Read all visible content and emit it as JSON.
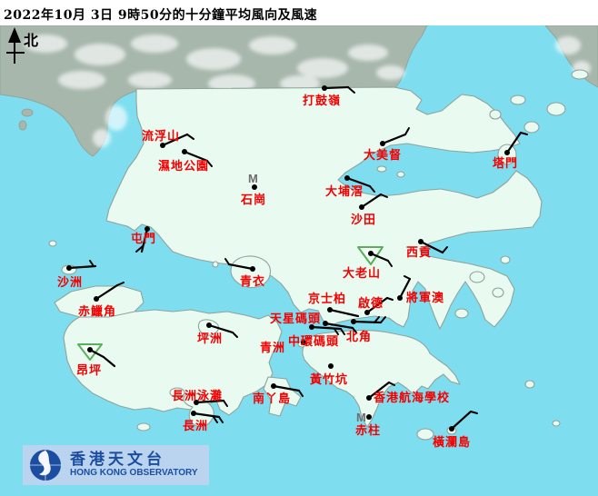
{
  "title": "2022年10月 3日 9時50分的十分鐘平均風向及風速",
  "north_label": "北",
  "calm_symbol": "M",
  "logo": {
    "chinese": "香港天文台",
    "english": "HONG KONG OBSERVATORY"
  },
  "colors": {
    "sea": "#7EDEF0",
    "land": "#E9FAF1",
    "shenzhen_land": "#A7B7AC",
    "station_label": "#f40000",
    "barb": "#000000",
    "calm_marker": "#6e6e6e",
    "mountain_triangle": "#58B058",
    "banner_bg": "#BAD4F0",
    "logo_blue": "#1b4ea0",
    "title_text": "#000000"
  },
  "stations": [
    {
      "name": "打鼓嶺",
      "marker": "dot",
      "dot": [
        357,
        97
      ],
      "barb": [
        [
          357,
          97
        ],
        [
          383,
          96
        ]
      ],
      "ticks": [
        [
          383,
          96,
          390,
          102
        ]
      ],
      "label": [
        333,
        104
      ]
    },
    {
      "name": "流浮山",
      "marker": "dot",
      "dot": [
        179,
        160
      ],
      "barb": [
        [
          179,
          160
        ],
        [
          206,
          148
        ]
      ],
      "ticks": [
        [
          206,
          148,
          213,
          153
        ]
      ],
      "label": [
        156,
        143
      ]
    },
    {
      "name": "濕地公園",
      "marker": "dot",
      "dot": [
        203,
        167
      ],
      "barb": [
        [
          203,
          167
        ],
        [
          228,
          177
        ]
      ],
      "ticks": [
        [
          228,
          177,
          233,
          183
        ]
      ],
      "label": [
        174,
        176
      ]
    },
    {
      "name": "石崗",
      "marker": "calm",
      "dot": [
        280,
        206
      ],
      "m": [
        273,
        201
      ],
      "label": [
        265,
        213
      ]
    },
    {
      "name": "大埔滘",
      "marker": "dot",
      "dot": [
        382,
        196
      ],
      "barb": [
        [
          382,
          196
        ],
        [
          407,
          205
        ]
      ],
      "ticks": [
        [
          407,
          205,
          412,
          211
        ]
      ],
      "label": [
        358,
        204
      ]
    },
    {
      "name": "沙田",
      "marker": "dot",
      "dot": [
        398,
        228
      ],
      "barb": [
        [
          398,
          228
        ],
        [
          419,
          214
        ]
      ],
      "ticks": [
        [
          419,
          214,
          426,
          217
        ]
      ],
      "label": [
        386,
        235
      ]
    },
    {
      "name": "大美督",
      "marker": "dot",
      "dot": [
        421,
        158
      ],
      "barb": [
        [
          421,
          158
        ],
        [
          446,
          148
        ]
      ],
      "ticks": [
        [
          446,
          148,
          450,
          141
        ]
      ],
      "label": [
        400,
        164
      ]
    },
    {
      "name": "塔門",
      "marker": "dot",
      "dot": [
        558,
        168
      ],
      "barb": [
        [
          558,
          168
        ],
        [
          573,
          146
        ]
      ],
      "ticks": [
        [
          573,
          146,
          580,
          148
        ]
      ],
      "label": [
        542,
        173
      ]
    },
    {
      "name": "屯門",
      "marker": "dot",
      "dot": [
        162,
        252
      ],
      "barb": [
        [
          162,
          252
        ],
        [
          156,
          277
        ]
      ],
      "ticks": [
        [
          157,
          271,
          150,
          277
        ]
      ],
      "label": [
        144,
        256
      ]
    },
    {
      "name": "青衣",
      "marker": "dot",
      "dot": [
        278,
        296
      ],
      "barb": [
        [
          278,
          296
        ],
        [
          252,
          291
        ]
      ],
      "ticks": [
        [
          252,
          291,
          248,
          285
        ]
      ],
      "label": [
        264,
        303
      ]
    },
    {
      "name": "赤鱲角",
      "marker": "dot",
      "dot": [
        106,
        329
      ],
      "barb": [
        [
          106,
          329
        ],
        [
          129,
          314
        ]
      ],
      "ticks": [
        [
          129,
          314,
          136,
          311
        ]
      ],
      "label": [
        86,
        336
      ]
    },
    {
      "name": "沙洲",
      "marker": "dot",
      "dot": [
        76,
        295
      ],
      "barb": [
        [
          76,
          295
        ],
        [
          105,
          293
        ]
      ],
      "ticks": [
        [
          103,
          293,
          99,
          287
        ]
      ],
      "label": [
        63,
        304
      ]
    },
    {
      "name": "坪洲",
      "marker": "dot",
      "dot": [
        230,
        358
      ],
      "barb": [
        [
          230,
          358
        ],
        [
          256,
          366
        ]
      ],
      "ticks": [
        [
          256,
          366,
          261,
          371
        ]
      ],
      "label": [
        217,
        366
      ]
    },
    {
      "name": "大老山",
      "marker": "triangle",
      "tri": [
        [
          394,
          272
        ],
        [
          421,
          272
        ],
        [
          408,
          291
        ]
      ],
      "dot": [
        408,
        279
      ],
      "barb": [
        [
          408,
          279
        ],
        [
          427,
          287
        ]
      ],
      "ticks": [
        [
          427,
          287,
          431,
          293
        ]
      ],
      "label": [
        377,
        294
      ]
    },
    {
      "name": "西貢",
      "marker": "dot",
      "dot": [
        463,
        266
      ],
      "barb": [
        [
          463,
          266
        ],
        [
          487,
          278
        ]
      ],
      "ticks": [
        [
          487,
          278,
          492,
          272
        ]
      ],
      "label": [
        447,
        271
      ]
    },
    {
      "name": "將軍澳",
      "marker": "dot",
      "dot": [
        440,
        328
      ],
      "barb": [
        [
          440,
          328
        ],
        [
          451,
          307
        ]
      ],
      "ticks": [
        [
          451,
          307,
          445,
          304
        ]
      ],
      "label": [
        447,
        321
      ]
    },
    {
      "name": "京士柏",
      "marker": "dot",
      "dot": [
        363,
        341
      ],
      "barb": [
        [
          363,
          341
        ],
        [
          394,
          348
        ]
      ],
      "ticks": [],
      "label": [
        339,
        322
      ]
    },
    {
      "name": "啟德",
      "marker": "dot",
      "dot": [
        404,
        344
      ],
      "barb": [
        [
          404,
          344
        ],
        [
          426,
          328
        ]
      ],
      "ticks": [
        [
          426,
          328,
          432,
          330
        ]
      ],
      "label": [
        394,
        327
      ]
    },
    {
      "name": "天星碼頭",
      "marker": "dot",
      "dot": [
        358,
        356
      ],
      "barb": [
        [
          358,
          356
        ],
        [
          388,
          361
        ]
      ],
      "ticks": [
        [
          388,
          361,
          392,
          366
        ]
      ],
      "label": [
        297,
        344
      ]
    },
    {
      "name": "中環碼頭",
      "marker": "dot",
      "dot": [
        343,
        360
      ],
      "barb": [
        [
          343,
          360
        ],
        [
          375,
          362
        ]
      ],
      "ticks": [
        [
          368,
          362,
          372,
          368
        ],
        [
          375,
          362,
          379,
          368
        ]
      ],
      "label": [
        317,
        369
      ]
    },
    {
      "name": "北角",
      "marker": "dot",
      "dot": [
        389,
        354
      ],
      "barb": [
        [
          389,
          354
        ],
        [
          419,
          355
        ]
      ],
      "ticks": [
        [
          412,
          355,
          417,
          349
        ],
        [
          419,
          355,
          424,
          349
        ]
      ],
      "label": [
        381,
        364
      ]
    },
    {
      "name": "青洲",
      "marker": "dot",
      "dot": [
        334,
        377
      ],
      "label": [
        286,
        376
      ]
    },
    {
      "name": "黃竹坑",
      "marker": "dot",
      "dot": [
        364,
        403
      ],
      "label": [
        341,
        411
      ]
    },
    {
      "name": "南丫島",
      "marker": "dot",
      "dot": [
        301,
        425
      ],
      "barb": [
        [
          301,
          425
        ],
        [
          329,
          430
        ]
      ],
      "ticks": [
        [
          329,
          430,
          333,
          436
        ]
      ],
      "label": [
        278,
        432
      ]
    },
    {
      "name": "香港航海學校",
      "marker": "dot",
      "dot": [
        406,
        438
      ],
      "barb": [
        [
          406,
          438
        ],
        [
          428,
          421
        ]
      ],
      "ticks": [
        [
          428,
          421,
          434,
          424
        ]
      ],
      "label": [
        411,
        431
      ]
    },
    {
      "name": "赤柱",
      "marker": "calm",
      "dot": [
        406,
        459
      ],
      "m": [
        392,
        464
      ],
      "label": [
        391,
        467
      ]
    },
    {
      "name": "橫瀾島",
      "marker": "dot",
      "dot": [
        497,
        472
      ],
      "barb": [
        [
          497,
          472
        ],
        [
          518,
          453
        ]
      ],
      "ticks": [
        [
          518,
          453,
          525,
          455
        ]
      ],
      "label": [
        476,
        480
      ]
    },
    {
      "name": "昂坪",
      "marker": "triangle",
      "tri": [
        [
          86,
          379
        ],
        [
          112,
          379
        ],
        [
          99,
          396
        ]
      ],
      "dot": [
        99,
        385
      ],
      "barb": [
        [
          99,
          385
        ],
        [
          114,
          393
        ],
        [
          126,
          403
        ]
      ],
      "ticks": [],
      "label": [
        84,
        401
      ]
    },
    {
      "name": "長洲泳灘",
      "marker": "dot",
      "dot": [
        216,
        443
      ],
      "barb": [
        [
          216,
          443
        ],
        [
          246,
          441
        ]
      ],
      "ticks": [
        [
          246,
          441,
          250,
          447
        ]
      ],
      "label": [
        189,
        429
      ]
    },
    {
      "name": "長洲",
      "marker": "dot",
      "dot": [
        213,
        455
      ],
      "barb": [
        [
          213,
          455
        ],
        [
          241,
          459
        ]
      ],
      "ticks": [
        [
          235,
          459,
          239,
          465
        ],
        [
          241,
          459,
          245,
          465
        ]
      ],
      "label": [
        201,
        462
      ]
    }
  ]
}
